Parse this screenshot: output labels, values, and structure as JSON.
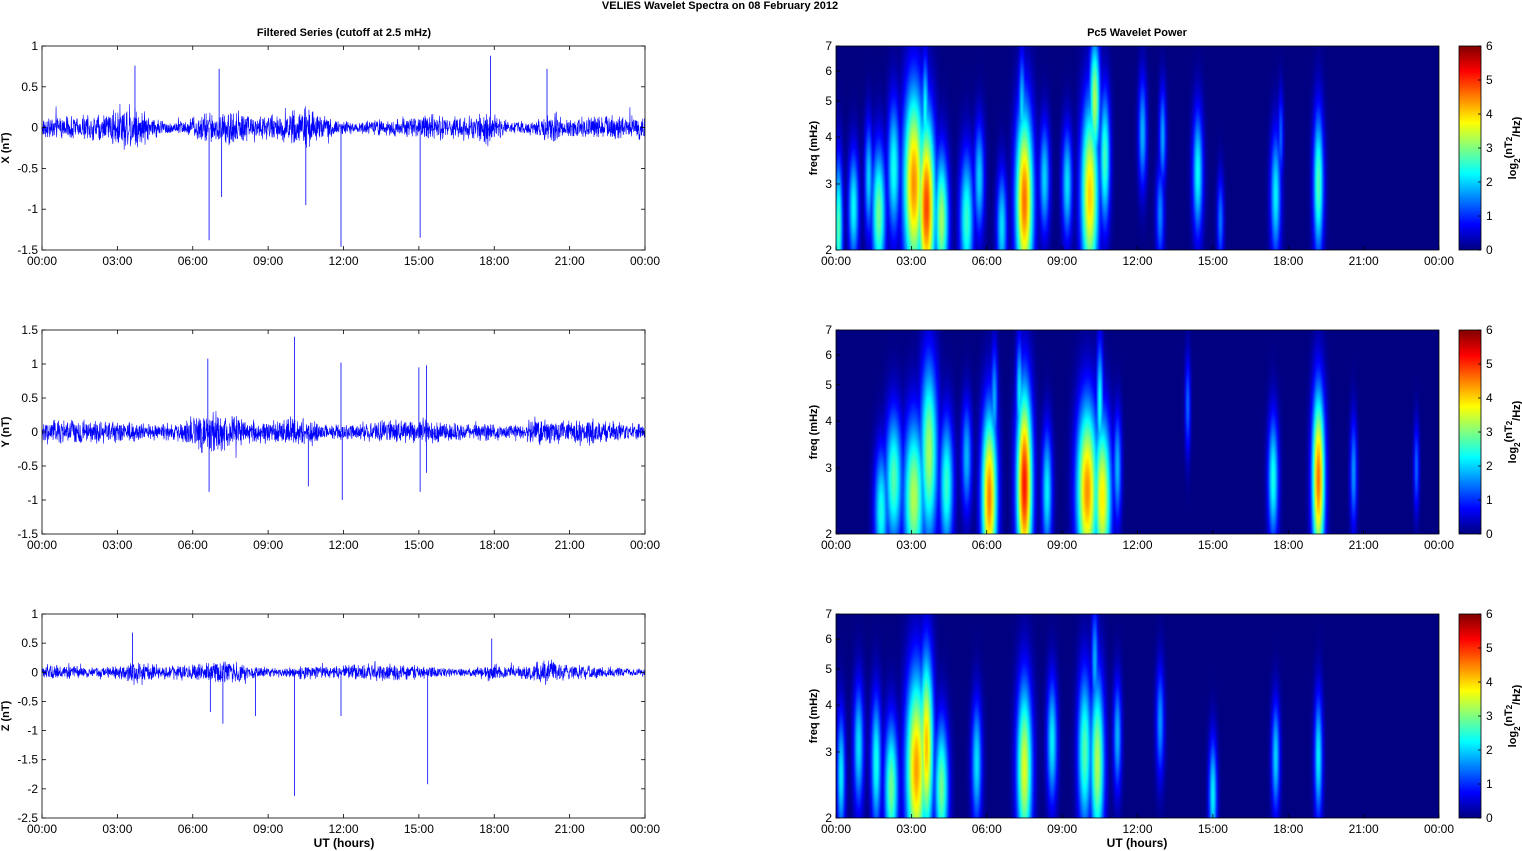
{
  "figure": {
    "title": "VELIES Wavelet Spectra on 08 February  2012",
    "left_column_title": "Filtered Series (cutoff at 2.5 mHz)",
    "right_column_title": "Pc5 Wavelet Power",
    "xlabel": "UT (hours)",
    "x_ticks": [
      "00:00",
      "03:00",
      "06:00",
      "09:00",
      "12:00",
      "15:00",
      "18:00",
      "21:00",
      "00:00"
    ],
    "series_color": "#0000ff",
    "frame_color": "#000000"
  },
  "chart_data": [
    {
      "type": "line",
      "component": "X",
      "ylabel": "X (nT)",
      "xlim_hours": [
        0,
        24
      ],
      "ylim": [
        -1.5,
        1
      ],
      "y_ticks": [
        "1",
        "0.5",
        "0",
        "-0.5",
        "-1",
        "-1.5"
      ],
      "y_tick_values": [
        1,
        0.5,
        0,
        -0.5,
        -1,
        -1.5
      ],
      "baseline_amplitude": 0.15,
      "activity": [
        {
          "center_h": 3.6,
          "width_h": 0.8,
          "gain": 2.6
        },
        {
          "center_h": 6.5,
          "width_h": 0.7,
          "gain": 1.9
        },
        {
          "center_h": 7.7,
          "width_h": 0.5,
          "gain": 1.6
        },
        {
          "center_h": 10.6,
          "width_h": 0.8,
          "gain": 2.1
        },
        {
          "center_h": 17.8,
          "width_h": 0.4,
          "gain": 2.0
        },
        {
          "center_h": 20.2,
          "width_h": 0.4,
          "gain": 2.1
        }
      ],
      "spikes": [
        {
          "t_h": 3.7,
          "value": 0.76
        },
        {
          "t_h": 6.65,
          "value": -1.38
        },
        {
          "t_h": 7.05,
          "value": 0.72
        },
        {
          "t_h": 7.15,
          "value": -0.85
        },
        {
          "t_h": 10.5,
          "value": -0.95
        },
        {
          "t_h": 11.9,
          "value": -1.46
        },
        {
          "t_h": 15.05,
          "value": -1.35
        },
        {
          "t_h": 17.85,
          "value": 0.88
        },
        {
          "t_h": 20.1,
          "value": 0.72
        }
      ]
    },
    {
      "type": "line",
      "component": "Y",
      "ylabel": "Y (nT)",
      "xlim_hours": [
        0,
        24
      ],
      "ylim": [
        -1.5,
        1.5
      ],
      "y_ticks": [
        "1.5",
        "1",
        "0.5",
        "0",
        "-0.5",
        "-1",
        "-1.5"
      ],
      "y_tick_values": [
        1.5,
        1,
        0.5,
        0,
        -0.5,
        -1,
        -1.5
      ],
      "baseline_amplitude": 0.18,
      "activity": [
        {
          "center_h": 3.5,
          "width_h": 1.2,
          "gain": 1.5
        },
        {
          "center_h": 6.6,
          "width_h": 0.8,
          "gain": 2.2
        },
        {
          "center_h": 10.4,
          "width_h": 0.8,
          "gain": 2.0
        },
        {
          "center_h": 17.8,
          "width_h": 0.4,
          "gain": 1.5
        },
        {
          "center_h": 19.6,
          "width_h": 0.4,
          "gain": 1.8
        }
      ],
      "spikes": [
        {
          "t_h": 6.6,
          "value": 1.08
        },
        {
          "t_h": 6.65,
          "value": -0.88
        },
        {
          "t_h": 10.05,
          "value": 1.4
        },
        {
          "t_h": 10.6,
          "value": -0.8
        },
        {
          "t_h": 11.9,
          "value": 1.02
        },
        {
          "t_h": 11.95,
          "value": -1.0
        },
        {
          "t_h": 15.0,
          "value": 0.95
        },
        {
          "t_h": 15.3,
          "value": 0.98
        },
        {
          "t_h": 15.05,
          "value": -0.88
        },
        {
          "t_h": 15.3,
          "value": -0.6
        }
      ]
    },
    {
      "type": "line",
      "component": "Z",
      "ylabel": "Z (nT)",
      "xlim_hours": [
        0,
        24
      ],
      "ylim": [
        -2.5,
        1
      ],
      "y_ticks": [
        "1",
        "0.5",
        "0",
        "-0.5",
        "-1",
        "-1.5",
        "-2",
        "-2.5"
      ],
      "y_tick_values": [
        1,
        0.5,
        0,
        -0.5,
        -1,
        -1.5,
        -2,
        -2.5
      ],
      "baseline_amplitude": 0.14,
      "activity": [
        {
          "center_h": 3.6,
          "width_h": 0.8,
          "gain": 2.4
        },
        {
          "center_h": 7.5,
          "width_h": 0.6,
          "gain": 1.6
        },
        {
          "center_h": 10.5,
          "width_h": 0.6,
          "gain": 1.6
        },
        {
          "center_h": 17.8,
          "width_h": 0.4,
          "gain": 2.0
        },
        {
          "center_h": 20.1,
          "width_h": 0.4,
          "gain": 1.7
        }
      ],
      "spikes": [
        {
          "t_h": 3.6,
          "value": 0.68
        },
        {
          "t_h": 6.7,
          "value": -0.68
        },
        {
          "t_h": 7.2,
          "value": -0.88
        },
        {
          "t_h": 8.5,
          "value": -0.75
        },
        {
          "t_h": 10.05,
          "value": -2.12
        },
        {
          "t_h": 11.9,
          "value": -0.75
        },
        {
          "t_h": 15.35,
          "value": -1.92
        },
        {
          "t_h": 17.9,
          "value": 0.58
        }
      ]
    },
    {
      "type": "heatmap",
      "component": "X",
      "ylabel": "freq (mHz)",
      "colorbar_label": "log2(nT2/Hz)",
      "xlim_hours": [
        0,
        24
      ],
      "ylim_mHz": [
        2,
        7
      ],
      "y_scale": "log",
      "y_ticks": [
        "7",
        "6",
        "5",
        "4",
        "3",
        "2"
      ],
      "y_tick_values": [
        7,
        6,
        5,
        4,
        3,
        2
      ],
      "clim": [
        0,
        6
      ],
      "colorbar_ticks": [
        "6",
        "5",
        "4",
        "3",
        "2",
        "1",
        "0"
      ],
      "colormap": "jet",
      "blobs": [
        {
          "t_h": 0.1,
          "f_mHz": 2.3,
          "power": 3.0,
          "dt_h": 0.12,
          "df": 0.3
        },
        {
          "t_h": 0.7,
          "f_mHz": 2.6,
          "power": 2.5,
          "dt_h": 0.15,
          "df": 0.25
        },
        {
          "t_h": 1.3,
          "f_mHz": 3.1,
          "power": 2.2,
          "dt_h": 0.12,
          "df": 0.25
        },
        {
          "t_h": 1.7,
          "f_mHz": 2.5,
          "power": 3.2,
          "dt_h": 0.2,
          "df": 0.3
        },
        {
          "t_h": 2.3,
          "f_mHz": 3.3,
          "power": 2.6,
          "dt_h": 0.18,
          "df": 0.3
        },
        {
          "t_h": 3.1,
          "f_mHz": 3.0,
          "power": 4.8,
          "dt_h": 0.3,
          "df": 0.42
        },
        {
          "t_h": 3.6,
          "f_mHz": 2.6,
          "power": 5.3,
          "dt_h": 0.25,
          "df": 0.4
        },
        {
          "t_h": 3.55,
          "f_mHz": 4.6,
          "power": 2.6,
          "dt_h": 0.1,
          "df": 0.25
        },
        {
          "t_h": 4.2,
          "f_mHz": 2.4,
          "power": 3.5,
          "dt_h": 0.2,
          "df": 0.3
        },
        {
          "t_h": 5.2,
          "f_mHz": 2.4,
          "power": 2.8,
          "dt_h": 0.2,
          "df": 0.3
        },
        {
          "t_h": 5.7,
          "f_mHz": 3.1,
          "power": 2.2,
          "dt_h": 0.15,
          "df": 0.25
        },
        {
          "t_h": 6.6,
          "f_mHz": 2.3,
          "power": 2.3,
          "dt_h": 0.15,
          "df": 0.25
        },
        {
          "t_h": 7.5,
          "f_mHz": 2.7,
          "power": 5.0,
          "dt_h": 0.25,
          "df": 0.4
        },
        {
          "t_h": 7.4,
          "f_mHz": 4.7,
          "power": 2.3,
          "dt_h": 0.1,
          "df": 0.25
        },
        {
          "t_h": 8.3,
          "f_mHz": 3.1,
          "power": 2.2,
          "dt_h": 0.15,
          "df": 0.25
        },
        {
          "t_h": 9.2,
          "f_mHz": 3.0,
          "power": 2.3,
          "dt_h": 0.15,
          "df": 0.25
        },
        {
          "t_h": 10.1,
          "f_mHz": 2.8,
          "power": 4.4,
          "dt_h": 0.25,
          "df": 0.4
        },
        {
          "t_h": 10.3,
          "f_mHz": 5.0,
          "power": 3.6,
          "dt_h": 0.15,
          "df": 0.28
        },
        {
          "t_h": 10.7,
          "f_mHz": 3.5,
          "power": 2.9,
          "dt_h": 0.15,
          "df": 0.3
        },
        {
          "t_h": 12.2,
          "f_mHz": 4.1,
          "power": 2.0,
          "dt_h": 0.12,
          "df": 0.25
        },
        {
          "t_h": 12.9,
          "f_mHz": 2.5,
          "power": 1.7,
          "dt_h": 0.12,
          "df": 0.22
        },
        {
          "t_h": 13.0,
          "f_mHz": 4.0,
          "power": 1.9,
          "dt_h": 0.1,
          "df": 0.22
        },
        {
          "t_h": 14.4,
          "f_mHz": 3.2,
          "power": 2.5,
          "dt_h": 0.15,
          "df": 0.28
        },
        {
          "t_h": 15.3,
          "f_mHz": 2.4,
          "power": 1.6,
          "dt_h": 0.1,
          "df": 0.2
        },
        {
          "t_h": 17.5,
          "f_mHz": 2.8,
          "power": 2.4,
          "dt_h": 0.15,
          "df": 0.28
        },
        {
          "t_h": 17.7,
          "f_mHz": 4.0,
          "power": 1.5,
          "dt_h": 0.08,
          "df": 0.2
        },
        {
          "t_h": 19.2,
          "f_mHz": 3.0,
          "power": 3.0,
          "dt_h": 0.15,
          "df": 0.32
        }
      ]
    },
    {
      "type": "heatmap",
      "component": "Y",
      "ylabel": "freq (mHz)",
      "colorbar_label": "log2(nT2/Hz)",
      "xlim_hours": [
        0,
        24
      ],
      "ylim_mHz": [
        2,
        7
      ],
      "y_scale": "log",
      "y_ticks": [
        "7",
        "6",
        "5",
        "4",
        "3",
        "2"
      ],
      "y_tick_values": [
        7,
        6,
        5,
        4,
        3,
        2
      ],
      "clim": [
        0,
        6
      ],
      "colorbar_ticks": [
        "6",
        "5",
        "4",
        "3",
        "2",
        "1",
        "0"
      ],
      "colormap": "jet",
      "blobs": [
        {
          "t_h": 1.8,
          "f_mHz": 2.3,
          "power": 2.6,
          "dt_h": 0.2,
          "df": 0.28
        },
        {
          "t_h": 2.3,
          "f_mHz": 2.8,
          "power": 3.0,
          "dt_h": 0.25,
          "df": 0.3
        },
        {
          "t_h": 3.1,
          "f_mHz": 2.5,
          "power": 3.6,
          "dt_h": 0.3,
          "df": 0.35
        },
        {
          "t_h": 3.7,
          "f_mHz": 3.3,
          "power": 3.5,
          "dt_h": 0.25,
          "df": 0.4
        },
        {
          "t_h": 4.4,
          "f_mHz": 2.7,
          "power": 2.8,
          "dt_h": 0.2,
          "df": 0.3
        },
        {
          "t_h": 5.2,
          "f_mHz": 3.2,
          "power": 2.0,
          "dt_h": 0.15,
          "df": 0.25
        },
        {
          "t_h": 6.1,
          "f_mHz": 2.5,
          "power": 4.9,
          "dt_h": 0.22,
          "df": 0.38
        },
        {
          "t_h": 6.3,
          "f_mHz": 4.5,
          "power": 2.0,
          "dt_h": 0.1,
          "df": 0.25
        },
        {
          "t_h": 7.5,
          "f_mHz": 2.7,
          "power": 5.6,
          "dt_h": 0.22,
          "df": 0.42
        },
        {
          "t_h": 7.3,
          "f_mHz": 4.7,
          "power": 2.4,
          "dt_h": 0.1,
          "df": 0.25
        },
        {
          "t_h": 8.4,
          "f_mHz": 2.6,
          "power": 2.4,
          "dt_h": 0.15,
          "df": 0.28
        },
        {
          "t_h": 10.0,
          "f_mHz": 2.6,
          "power": 4.8,
          "dt_h": 0.3,
          "df": 0.38
        },
        {
          "t_h": 10.6,
          "f_mHz": 2.5,
          "power": 4.2,
          "dt_h": 0.25,
          "df": 0.35
        },
        {
          "t_h": 10.5,
          "f_mHz": 4.4,
          "power": 2.6,
          "dt_h": 0.1,
          "df": 0.28
        },
        {
          "t_h": 11.2,
          "f_mHz": 3.0,
          "power": 2.0,
          "dt_h": 0.12,
          "df": 0.25
        },
        {
          "t_h": 14.0,
          "f_mHz": 4.4,
          "power": 1.5,
          "dt_h": 0.08,
          "df": 0.22
        },
        {
          "t_h": 17.4,
          "f_mHz": 2.8,
          "power": 2.6,
          "dt_h": 0.15,
          "df": 0.28
        },
        {
          "t_h": 19.2,
          "f_mHz": 2.8,
          "power": 5.0,
          "dt_h": 0.18,
          "df": 0.38
        },
        {
          "t_h": 20.6,
          "f_mHz": 2.9,
          "power": 1.8,
          "dt_h": 0.1,
          "df": 0.25
        },
        {
          "t_h": 23.1,
          "f_mHz": 3.0,
          "power": 1.5,
          "dt_h": 0.08,
          "df": 0.2
        }
      ]
    },
    {
      "type": "heatmap",
      "component": "Z",
      "ylabel": "freq (mHz)",
      "colorbar_label": "log2(nT2/Hz)",
      "xlim_hours": [
        0,
        24
      ],
      "ylim_mHz": [
        2,
        7
      ],
      "y_scale": "log",
      "y_ticks": [
        "7",
        "6",
        "5",
        "4",
        "3",
        "2"
      ],
      "y_tick_values": [
        7,
        6,
        5,
        4,
        3,
        2
      ],
      "clim": [
        0,
        6
      ],
      "colorbar_ticks": [
        "6",
        "5",
        "4",
        "3",
        "2",
        "1",
        "0"
      ],
      "colormap": "jet",
      "blobs": [
        {
          "t_h": 0.2,
          "f_mHz": 2.6,
          "power": 2.4,
          "dt_h": 0.12,
          "df": 0.28
        },
        {
          "t_h": 0.9,
          "f_mHz": 3.1,
          "power": 2.3,
          "dt_h": 0.15,
          "df": 0.28
        },
        {
          "t_h": 1.6,
          "f_mHz": 2.8,
          "power": 2.6,
          "dt_h": 0.15,
          "df": 0.3
        },
        {
          "t_h": 2.2,
          "f_mHz": 2.4,
          "power": 3.2,
          "dt_h": 0.2,
          "df": 0.3
        },
        {
          "t_h": 3.2,
          "f_mHz": 2.7,
          "power": 4.7,
          "dt_h": 0.3,
          "df": 0.42
        },
        {
          "t_h": 3.6,
          "f_mHz": 3.1,
          "power": 4.5,
          "dt_h": 0.2,
          "df": 0.4
        },
        {
          "t_h": 4.2,
          "f_mHz": 2.4,
          "power": 3.2,
          "dt_h": 0.2,
          "df": 0.3
        },
        {
          "t_h": 5.6,
          "f_mHz": 2.8,
          "power": 2.3,
          "dt_h": 0.15,
          "df": 0.28
        },
        {
          "t_h": 7.5,
          "f_mHz": 2.7,
          "power": 3.9,
          "dt_h": 0.22,
          "df": 0.38
        },
        {
          "t_h": 8.6,
          "f_mHz": 3.2,
          "power": 2.4,
          "dt_h": 0.15,
          "df": 0.28
        },
        {
          "t_h": 9.9,
          "f_mHz": 3.0,
          "power": 3.0,
          "dt_h": 0.2,
          "df": 0.35
        },
        {
          "t_h": 10.4,
          "f_mHz": 2.8,
          "power": 3.6,
          "dt_h": 0.2,
          "df": 0.38
        },
        {
          "t_h": 10.3,
          "f_mHz": 5.2,
          "power": 2.0,
          "dt_h": 0.1,
          "df": 0.25
        },
        {
          "t_h": 11.2,
          "f_mHz": 3.3,
          "power": 2.0,
          "dt_h": 0.12,
          "df": 0.25
        },
        {
          "t_h": 12.9,
          "f_mHz": 3.6,
          "power": 1.8,
          "dt_h": 0.12,
          "df": 0.25
        },
        {
          "t_h": 15.0,
          "f_mHz": 2.3,
          "power": 2.4,
          "dt_h": 0.12,
          "df": 0.25
        },
        {
          "t_h": 17.5,
          "f_mHz": 2.9,
          "power": 2.2,
          "dt_h": 0.12,
          "df": 0.25
        },
        {
          "t_h": 19.2,
          "f_mHz": 2.9,
          "power": 2.4,
          "dt_h": 0.12,
          "df": 0.28
        }
      ]
    }
  ]
}
